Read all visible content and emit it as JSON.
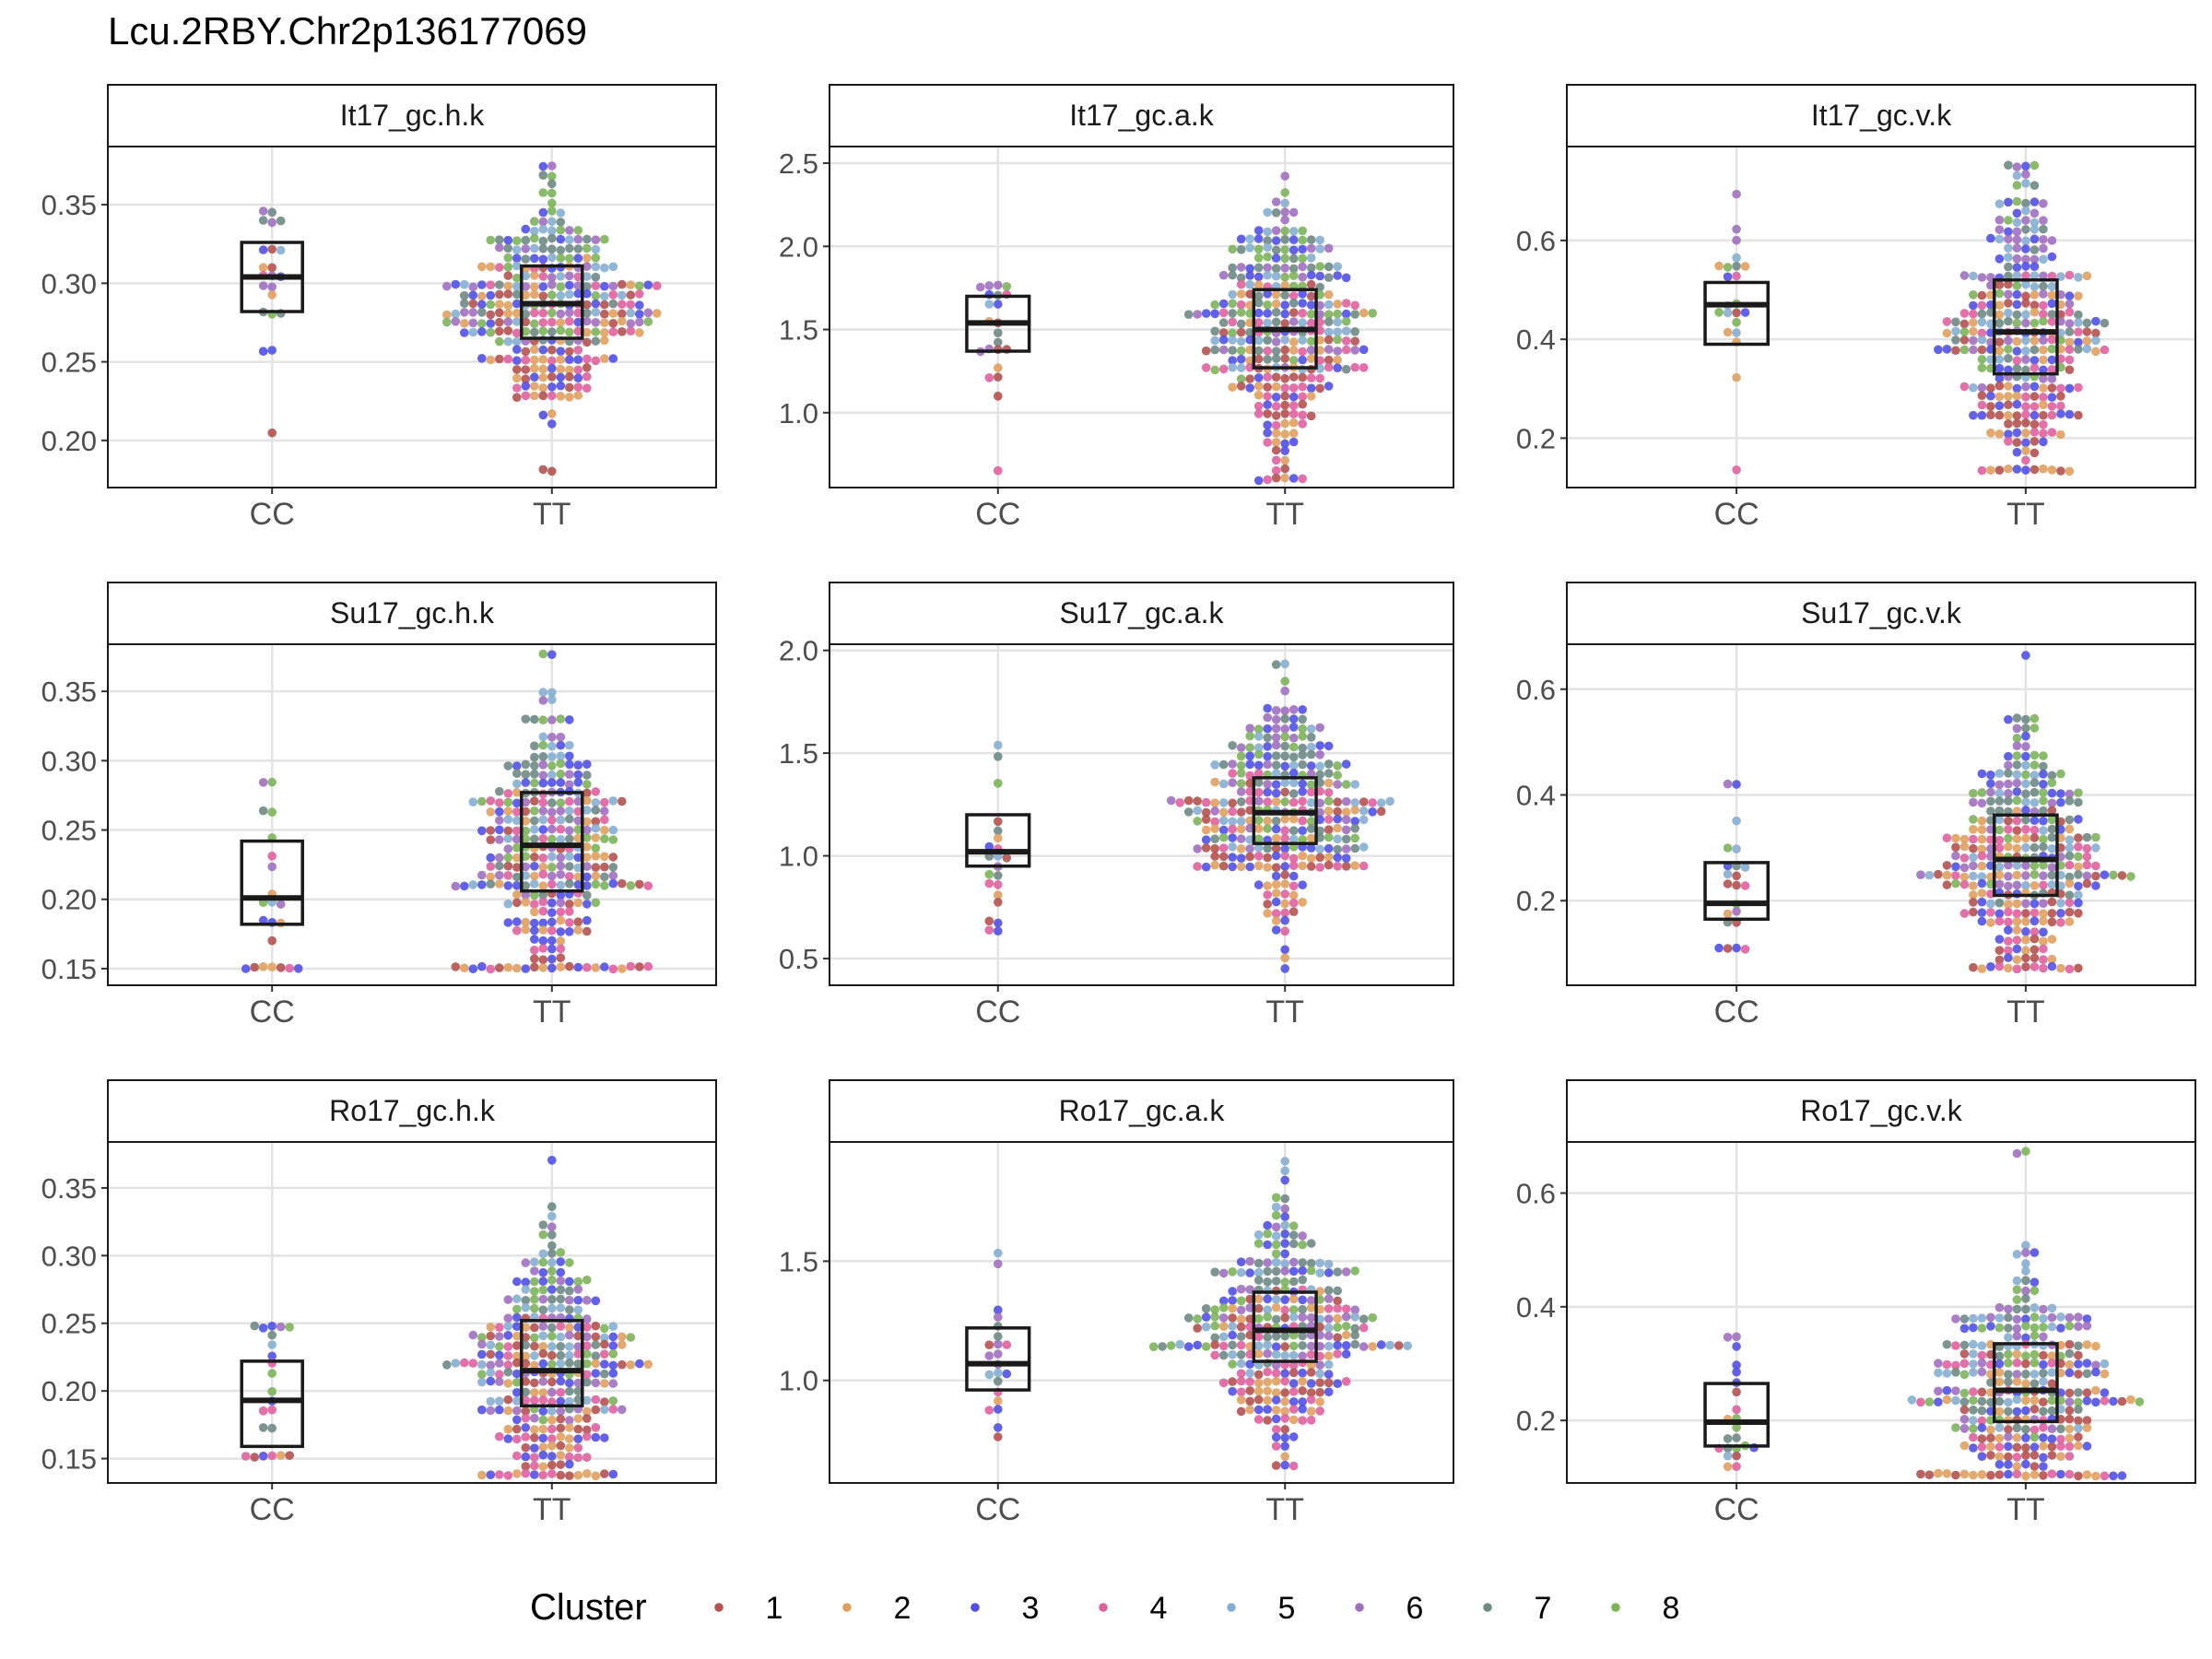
{
  "title": "Lcu.2RBY.Chr2p136177069",
  "legend": {
    "title": "Cluster",
    "entries": [
      {
        "label": "1",
        "color": "#B5514F"
      },
      {
        "label": "2",
        "color": "#E0A05E"
      },
      {
        "label": "3",
        "color": "#5050E8"
      },
      {
        "label": "4",
        "color": "#E0609E"
      },
      {
        "label": "5",
        "color": "#86AED0"
      },
      {
        "label": "6",
        "color": "#A070C0"
      },
      {
        "label": "7",
        "color": "#6E8A84"
      },
      {
        "label": "8",
        "color": "#7CB45A"
      }
    ]
  },
  "chart_data": [
    {
      "type": "box-beeswarm",
      "panel": "It17_gc.h.k",
      "categories": [
        "CC",
        "TT"
      ],
      "yticks": [
        0.2,
        0.25,
        0.3,
        0.35
      ],
      "ytick_labels": [
        "0.20",
        "0.25",
        "0.30",
        "0.35"
      ],
      "ylim": [
        0.17,
        0.387
      ],
      "boxes": [
        {
          "category": "CC",
          "q1": 0.282,
          "median": 0.304,
          "q3": 0.326,
          "count": 22,
          "min": 0.203,
          "max": 0.346
        },
        {
          "category": "TT",
          "q1": 0.265,
          "median": 0.287,
          "q3": 0.311,
          "count": 300,
          "min": 0.179,
          "max": 0.377
        }
      ]
    },
    {
      "type": "box-beeswarm",
      "panel": "It17_gc.a.k",
      "categories": [
        "CC",
        "TT"
      ],
      "yticks": [
        1.0,
        1.5,
        2.0,
        2.5
      ],
      "ytick_labels": [
        "1.0",
        "1.5",
        "2.0",
        "2.5"
      ],
      "ylim": [
        0.55,
        2.6
      ],
      "boxes": [
        {
          "category": "CC",
          "q1": 1.37,
          "median": 1.54,
          "q3": 1.7,
          "count": 22,
          "min": 0.66,
          "max": 1.77
        },
        {
          "category": "TT",
          "q1": 1.27,
          "median": 1.5,
          "q3": 1.74,
          "count": 300,
          "min": 0.62,
          "max": 2.44
        }
      ]
    },
    {
      "type": "box-beeswarm",
      "panel": "It17_gc.v.k",
      "categories": [
        "CC",
        "TT"
      ],
      "yticks": [
        0.2,
        0.4,
        0.6
      ],
      "ytick_labels": [
        "0.2",
        "0.4",
        "0.6"
      ],
      "ylim": [
        0.1,
        0.79
      ],
      "boxes": [
        {
          "category": "CC",
          "q1": 0.39,
          "median": 0.47,
          "q3": 0.515,
          "count": 22,
          "min": 0.13,
          "max": 0.69
        },
        {
          "category": "TT",
          "q1": 0.33,
          "median": 0.415,
          "q3": 0.52,
          "count": 300,
          "min": 0.13,
          "max": 0.76
        }
      ]
    },
    {
      "type": "box-beeswarm",
      "panel": "Su17_gc.h.k",
      "categories": [
        "CC",
        "TT"
      ],
      "yticks": [
        0.15,
        0.2,
        0.25,
        0.3,
        0.35
      ],
      "ytick_labels": [
        "0.15",
        "0.20",
        "0.25",
        "0.30",
        "0.35"
      ],
      "ylim": [
        0.138,
        0.384
      ],
      "boxes": [
        {
          "category": "CC",
          "q1": 0.182,
          "median": 0.201,
          "q3": 0.242,
          "count": 22,
          "min": 0.152,
          "max": 0.283
        },
        {
          "category": "TT",
          "q1": 0.206,
          "median": 0.239,
          "q3": 0.277,
          "count": 300,
          "min": 0.148,
          "max": 0.374
        }
      ]
    },
    {
      "type": "box-beeswarm",
      "panel": "Su17_gc.a.k",
      "categories": [
        "CC",
        "TT"
      ],
      "yticks": [
        0.5,
        1.0,
        1.5,
        2.0
      ],
      "ytick_labels": [
        "0.5",
        "1.0",
        "1.5",
        "2.0"
      ],
      "ylim": [
        0.37,
        2.03
      ],
      "boxes": [
        {
          "category": "CC",
          "q1": 0.95,
          "median": 1.02,
          "q3": 1.2,
          "count": 22,
          "min": 0.62,
          "max": 1.54
        },
        {
          "category": "TT",
          "q1": 1.06,
          "median": 1.21,
          "q3": 1.38,
          "count": 300,
          "min": 0.44,
          "max": 1.94
        }
      ]
    },
    {
      "type": "box-beeswarm",
      "panel": "Su17_gc.v.k",
      "categories": [
        "CC",
        "TT"
      ],
      "yticks": [
        0.2,
        0.4,
        0.6
      ],
      "ytick_labels": [
        "0.2",
        "0.4",
        "0.6"
      ],
      "ylim": [
        0.04,
        0.685
      ],
      "boxes": [
        {
          "category": "CC",
          "q1": 0.165,
          "median": 0.195,
          "q3": 0.272,
          "count": 22,
          "min": 0.1,
          "max": 0.415
        },
        {
          "category": "TT",
          "q1": 0.21,
          "median": 0.278,
          "q3": 0.362,
          "count": 300,
          "min": 0.07,
          "max": 0.66
        }
      ]
    },
    {
      "type": "box-beeswarm",
      "panel": "Ro17_gc.h.k",
      "categories": [
        "CC",
        "TT"
      ],
      "yticks": [
        0.15,
        0.2,
        0.25,
        0.3,
        0.35
      ],
      "ytick_labels": [
        "0.15",
        "0.20",
        "0.25",
        "0.30",
        "0.35"
      ],
      "ylim": [
        0.132,
        0.384
      ],
      "boxes": [
        {
          "category": "CC",
          "q1": 0.159,
          "median": 0.193,
          "q3": 0.222,
          "count": 22,
          "min": 0.15,
          "max": 0.246
        },
        {
          "category": "TT",
          "q1": 0.189,
          "median": 0.215,
          "q3": 0.252,
          "count": 300,
          "min": 0.14,
          "max": 0.373
        }
      ]
    },
    {
      "type": "box-beeswarm",
      "panel": "Ro17_gc.a.k",
      "categories": [
        "CC",
        "TT"
      ],
      "yticks": [
        1.0,
        1.5
      ],
      "ytick_labels": [
        "1.0",
        "1.5"
      ],
      "ylim": [
        0.57,
        2.0
      ],
      "boxes": [
        {
          "category": "CC",
          "q1": 0.96,
          "median": 1.07,
          "q3": 1.22,
          "count": 22,
          "min": 0.77,
          "max": 1.53
        },
        {
          "category": "TT",
          "q1": 1.08,
          "median": 1.21,
          "q3": 1.37,
          "count": 300,
          "min": 0.63,
          "max": 1.93
        }
      ]
    },
    {
      "type": "box-beeswarm",
      "panel": "Ro17_gc.v.k",
      "categories": [
        "CC",
        "TT"
      ],
      "yticks": [
        0.2,
        0.4,
        0.6
      ],
      "ytick_labels": [
        "0.2",
        "0.4",
        "0.6"
      ],
      "ylim": [
        0.09,
        0.69
      ],
      "boxes": [
        {
          "category": "CC",
          "q1": 0.155,
          "median": 0.197,
          "q3": 0.265,
          "count": 22,
          "min": 0.12,
          "max": 0.35
        },
        {
          "category": "TT",
          "q1": 0.198,
          "median": 0.253,
          "q3": 0.335,
          "count": 300,
          "min": 0.1,
          "max": 0.67
        }
      ]
    }
  ]
}
